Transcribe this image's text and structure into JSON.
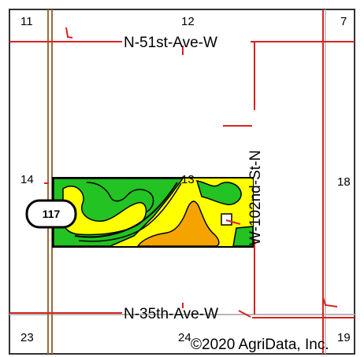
{
  "map": {
    "sections": {
      "s11": "11",
      "s12": "12",
      "s7": "7",
      "s14": "14",
      "s13": "13",
      "s18": "18",
      "s23": "23",
      "s24": "24",
      "s19": "19"
    },
    "roads": {
      "north": "N-51st-Ave-W",
      "south": "N-35th-Ave-W",
      "east": "W-102nd-St-N"
    },
    "highway_shield": "117",
    "copyright": "©2020 AgriData, Inc.",
    "colors": {
      "road": "#d9231f",
      "highway": "#9a6b3c",
      "field_green": "#22c322",
      "field_yellow": "#ffff00",
      "field_orange": "#f5a300",
      "field_outline": "#000000"
    }
  }
}
